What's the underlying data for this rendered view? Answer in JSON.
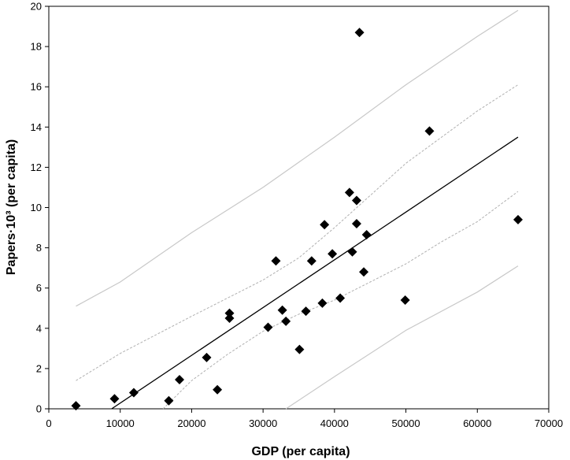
{
  "chart_data": {
    "type": "scatter",
    "title": "",
    "xlabel": "GDP (per capita)",
    "ylabel": "Papers·10³ (per capita)",
    "xlim": [
      0,
      70000
    ],
    "ylim": [
      0,
      20
    ],
    "xticks": [
      0,
      10000,
      20000,
      30000,
      40000,
      50000,
      60000,
      70000
    ],
    "yticks": [
      0,
      2,
      4,
      6,
      8,
      10,
      12,
      14,
      16,
      18,
      20
    ],
    "grid": false,
    "legend": "none",
    "marker": "diamond",
    "colors": {
      "points": "#000000",
      "fit_line": "#000000",
      "confidence_band": "#b0b0b0",
      "prediction_band": "#c8c8c8"
    },
    "points": [
      {
        "x": 3800,
        "y": 0.15
      },
      {
        "x": 9200,
        "y": 0.5
      },
      {
        "x": 11900,
        "y": 0.8
      },
      {
        "x": 16800,
        "y": 0.4
      },
      {
        "x": 18300,
        "y": 1.45
      },
      {
        "x": 22100,
        "y": 2.55
      },
      {
        "x": 23600,
        "y": 0.95
      },
      {
        "x": 25300,
        "y": 4.5
      },
      {
        "x": 25300,
        "y": 4.75
      },
      {
        "x": 30700,
        "y": 4.05
      },
      {
        "x": 31800,
        "y": 7.35
      },
      {
        "x": 32700,
        "y": 4.9
      },
      {
        "x": 33200,
        "y": 4.35
      },
      {
        "x": 35100,
        "y": 2.95
      },
      {
        "x": 36000,
        "y": 4.85
      },
      {
        "x": 36800,
        "y": 7.35
      },
      {
        "x": 38300,
        "y": 5.25
      },
      {
        "x": 38600,
        "y": 9.15
      },
      {
        "x": 39700,
        "y": 7.7
      },
      {
        "x": 40800,
        "y": 5.5
      },
      {
        "x": 42100,
        "y": 10.75
      },
      {
        "x": 42500,
        "y": 7.8
      },
      {
        "x": 43100,
        "y": 9.2
      },
      {
        "x": 43100,
        "y": 10.35
      },
      {
        "x": 43500,
        "y": 18.7
      },
      {
        "x": 44100,
        "y": 6.8
      },
      {
        "x": 44500,
        "y": 8.65
      },
      {
        "x": 49900,
        "y": 5.4
      },
      {
        "x": 53300,
        "y": 13.8
      },
      {
        "x": 65700,
        "y": 9.4
      }
    ],
    "fit_line": [
      {
        "x": 8800,
        "y": 0.0
      },
      {
        "x": 65700,
        "y": 13.5
      }
    ],
    "confidence_band_upper": [
      {
        "x": 3800,
        "y": 1.4
      },
      {
        "x": 10000,
        "y": 2.75
      },
      {
        "x": 20000,
        "y": 4.6
      },
      {
        "x": 25000,
        "y": 5.5
      },
      {
        "x": 30000,
        "y": 6.4
      },
      {
        "x": 35000,
        "y": 7.5
      },
      {
        "x": 40000,
        "y": 9.0
      },
      {
        "x": 45000,
        "y": 10.6
      },
      {
        "x": 50000,
        "y": 12.2
      },
      {
        "x": 55000,
        "y": 13.5
      },
      {
        "x": 60000,
        "y": 14.8
      },
      {
        "x": 65700,
        "y": 16.1
      }
    ],
    "confidence_band_lower": [
      {
        "x": 16000,
        "y": 0.0
      },
      {
        "x": 20000,
        "y": 1.4
      },
      {
        "x": 25000,
        "y": 2.7
      },
      {
        "x": 30000,
        "y": 3.85
      },
      {
        "x": 35000,
        "y": 4.7
      },
      {
        "x": 40000,
        "y": 5.4
      },
      {
        "x": 45000,
        "y": 6.3
      },
      {
        "x": 50000,
        "y": 7.2
      },
      {
        "x": 55000,
        "y": 8.3
      },
      {
        "x": 60000,
        "y": 9.3
      },
      {
        "x": 65700,
        "y": 10.8
      }
    ],
    "prediction_band_upper": [
      {
        "x": 3800,
        "y": 5.1
      },
      {
        "x": 10000,
        "y": 6.3
      },
      {
        "x": 20000,
        "y": 8.75
      },
      {
        "x": 30000,
        "y": 11.0
      },
      {
        "x": 40000,
        "y": 13.5
      },
      {
        "x": 50000,
        "y": 16.1
      },
      {
        "x": 60000,
        "y": 18.5
      },
      {
        "x": 65700,
        "y": 19.8
      }
    ],
    "prediction_band_lower": [
      {
        "x": 33200,
        "y": 0.0
      },
      {
        "x": 40000,
        "y": 1.6
      },
      {
        "x": 50000,
        "y": 3.9
      },
      {
        "x": 60000,
        "y": 5.8
      },
      {
        "x": 65700,
        "y": 7.1
      }
    ]
  }
}
